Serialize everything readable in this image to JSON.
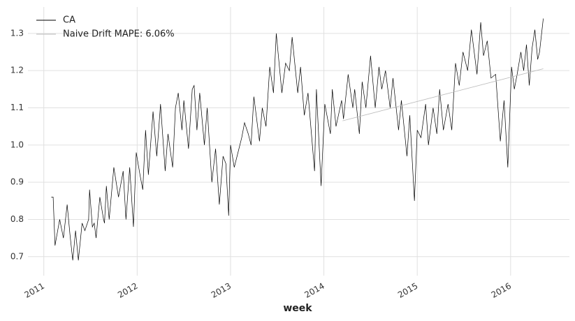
{
  "chart_data": {
    "type": "line",
    "x_label": "week",
    "xlim": [
      2010.83,
      2016.63
    ],
    "xticks": [
      2011,
      2012,
      2013,
      2014,
      2015,
      2016
    ],
    "ylim": [
      0.649,
      1.371
    ],
    "yticks": [
      0.7,
      0.8,
      0.9,
      {
        "value": 1,
        "label": "1.0"
      },
      1.1,
      1.2,
      1.3
    ],
    "grid": true,
    "legend": "upper left",
    "series": [
      {
        "name": "CA",
        "color": "#000000",
        "x": [
          2011.08,
          2011.1,
          2011.12,
          2011.17,
          2011.21,
          2011.25,
          2011.28,
          2011.31,
          2011.34,
          2011.37,
          2011.41,
          2011.44,
          2011.48,
          2011.49,
          2011.52,
          2011.54,
          2011.56,
          2011.6,
          2011.64,
          2011.65,
          2011.67,
          2011.7,
          2011.75,
          2011.8,
          2011.85,
          2011.88,
          2011.92,
          2011.96,
          2011.99,
          2012.03,
          2012.06,
          2012.09,
          2012.12,
          2012.17,
          2012.21,
          2012.25,
          2012.3,
          2012.33,
          2012.38,
          2012.41,
          2012.44,
          2012.48,
          2012.5,
          2012.55,
          2012.59,
          2012.61,
          2012.64,
          2012.67,
          2012.72,
          2012.75,
          2012.8,
          2012.84,
          2012.88,
          2012.92,
          2012.95,
          2012.98,
          2013.0,
          2013.04,
          2013.08,
          2013.12,
          2013.15,
          2013.19,
          2013.22,
          2013.25,
          2013.31,
          2013.34,
          2013.38,
          2013.42,
          2013.46,
          2013.49,
          2013.55,
          2013.59,
          2013.63,
          2013.66,
          2013.72,
          2013.75,
          2013.79,
          2013.83,
          2013.9,
          2013.92,
          2013.97,
          2014.01,
          2014.07,
          2014.09,
          2014.13,
          2014.19,
          2014.21,
          2014.26,
          2014.31,
          2014.33,
          2014.38,
          2014.41,
          2014.45,
          2014.5,
          2014.55,
          2014.59,
          2014.62,
          2014.66,
          2014.71,
          2014.74,
          2014.8,
          2014.83,
          2014.89,
          2014.92,
          2014.97,
          2015.0,
          2015.04,
          2015.09,
          2015.12,
          2015.17,
          2015.21,
          2015.24,
          2015.28,
          2015.33,
          2015.37,
          2015.41,
          2015.45,
          2015.49,
          2015.54,
          2015.58,
          2015.64,
          2015.68,
          2015.71,
          2015.75,
          2015.79,
          2015.84,
          2015.89,
          2015.93,
          2015.97,
          2016.01,
          2016.04,
          2016.07,
          2016.11,
          2016.14,
          2016.17,
          2016.2,
          2016.23,
          2016.26,
          2016.29,
          2016.31,
          2016.35
        ],
        "values": [
          0.86,
          0.86,
          0.73,
          0.8,
          0.75,
          0.84,
          0.76,
          0.69,
          0.77,
          0.69,
          0.79,
          0.77,
          0.8,
          0.88,
          0.78,
          0.79,
          0.75,
          0.86,
          0.8,
          0.79,
          0.89,
          0.8,
          0.94,
          0.86,
          0.93,
          0.8,
          0.94,
          0.78,
          0.98,
          0.92,
          0.88,
          1.04,
          0.92,
          1.09,
          0.97,
          1.11,
          0.93,
          1.03,
          0.94,
          1.1,
          1.14,
          1.04,
          1.12,
          0.99,
          1.15,
          1.16,
          1.04,
          1.14,
          1.0,
          1.1,
          0.9,
          0.99,
          0.84,
          0.97,
          0.95,
          0.81,
          1.0,
          0.94,
          0.98,
          1.02,
          1.06,
          1.03,
          1.0,
          1.13,
          1.01,
          1.1,
          1.05,
          1.21,
          1.14,
          1.3,
          1.14,
          1.22,
          1.2,
          1.29,
          1.14,
          1.21,
          1.08,
          1.14,
          0.93,
          1.15,
          0.89,
          1.11,
          1.03,
          1.15,
          1.05,
          1.12,
          1.07,
          1.19,
          1.1,
          1.15,
          1.03,
          1.17,
          1.1,
          1.24,
          1.1,
          1.21,
          1.15,
          1.2,
          1.1,
          1.18,
          1.04,
          1.12,
          0.97,
          1.08,
          0.85,
          1.04,
          1.02,
          1.11,
          1.0,
          1.1,
          1.03,
          1.15,
          1.04,
          1.11,
          1.04,
          1.22,
          1.16,
          1.25,
          1.2,
          1.31,
          1.19,
          1.33,
          1.24,
          1.28,
          1.18,
          1.19,
          1.01,
          1.12,
          0.94,
          1.21,
          1.15,
          1.19,
          1.25,
          1.2,
          1.27,
          1.16,
          1.26,
          1.31,
          1.23,
          1.25,
          1.34
        ]
      },
      {
        "name": "Naive Drift MAPE: 6.06%",
        "color": "#bbbbbb",
        "x": [
          2014.2,
          2016.35
        ],
        "values": [
          1.065,
          1.205
        ]
      }
    ]
  }
}
